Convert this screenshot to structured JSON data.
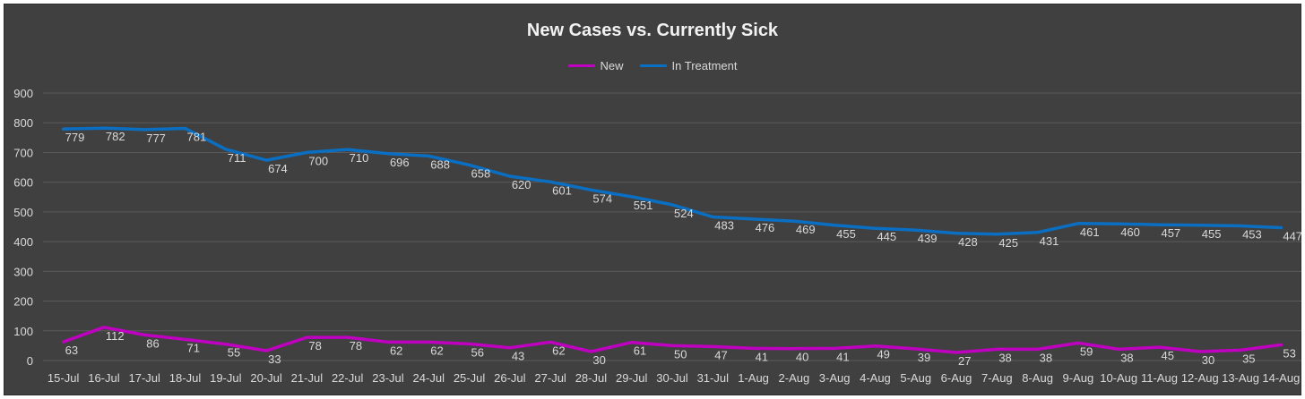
{
  "colors": {
    "background": "#404040",
    "grid": "#5a5a5a",
    "text": "#d9d9d9",
    "series_new": "#c000c0",
    "series_treatment": "#0a6fc2"
  },
  "chart_data": {
    "type": "line",
    "title": "New Cases vs. Currently Sick",
    "xlabel": "",
    "ylabel": "",
    "ylim": [
      0,
      900
    ],
    "yticks": [
      0,
      100,
      200,
      300,
      400,
      500,
      600,
      700,
      800,
      900
    ],
    "grid": true,
    "legend_position": "top-center",
    "categories": [
      "15-Jul",
      "16-Jul",
      "17-Jul",
      "18-Jul",
      "19-Jul",
      "20-Jul",
      "21-Jul",
      "22-Jul",
      "23-Jul",
      "24-Jul",
      "25-Jul",
      "26-Jul",
      "27-Jul",
      "28-Jul",
      "29-Jul",
      "30-Jul",
      "31-Jul",
      "1-Aug",
      "2-Aug",
      "3-Aug",
      "4-Aug",
      "5-Aug",
      "6-Aug",
      "7-Aug",
      "8-Aug",
      "9-Aug",
      "10-Aug",
      "11-Aug",
      "12-Aug",
      "13-Aug",
      "14-Aug"
    ],
    "series": [
      {
        "name": "New",
        "color": "#c000c0",
        "values": [
          63,
          112,
          86,
          71,
          55,
          33,
          78,
          78,
          62,
          62,
          56,
          43,
          62,
          30,
          61,
          50,
          47,
          41,
          40,
          41,
          49,
          39,
          27,
          38,
          38,
          59,
          38,
          45,
          30,
          35,
          53
        ]
      },
      {
        "name": "In Treatment",
        "color": "#0a6fc2",
        "values": [
          779,
          782,
          777,
          781,
          711,
          674,
          700,
          710,
          696,
          688,
          658,
          620,
          601,
          574,
          551,
          524,
          483,
          476,
          469,
          455,
          445,
          439,
          428,
          425,
          431,
          461,
          460,
          457,
          455,
          453,
          447
        ]
      }
    ]
  }
}
